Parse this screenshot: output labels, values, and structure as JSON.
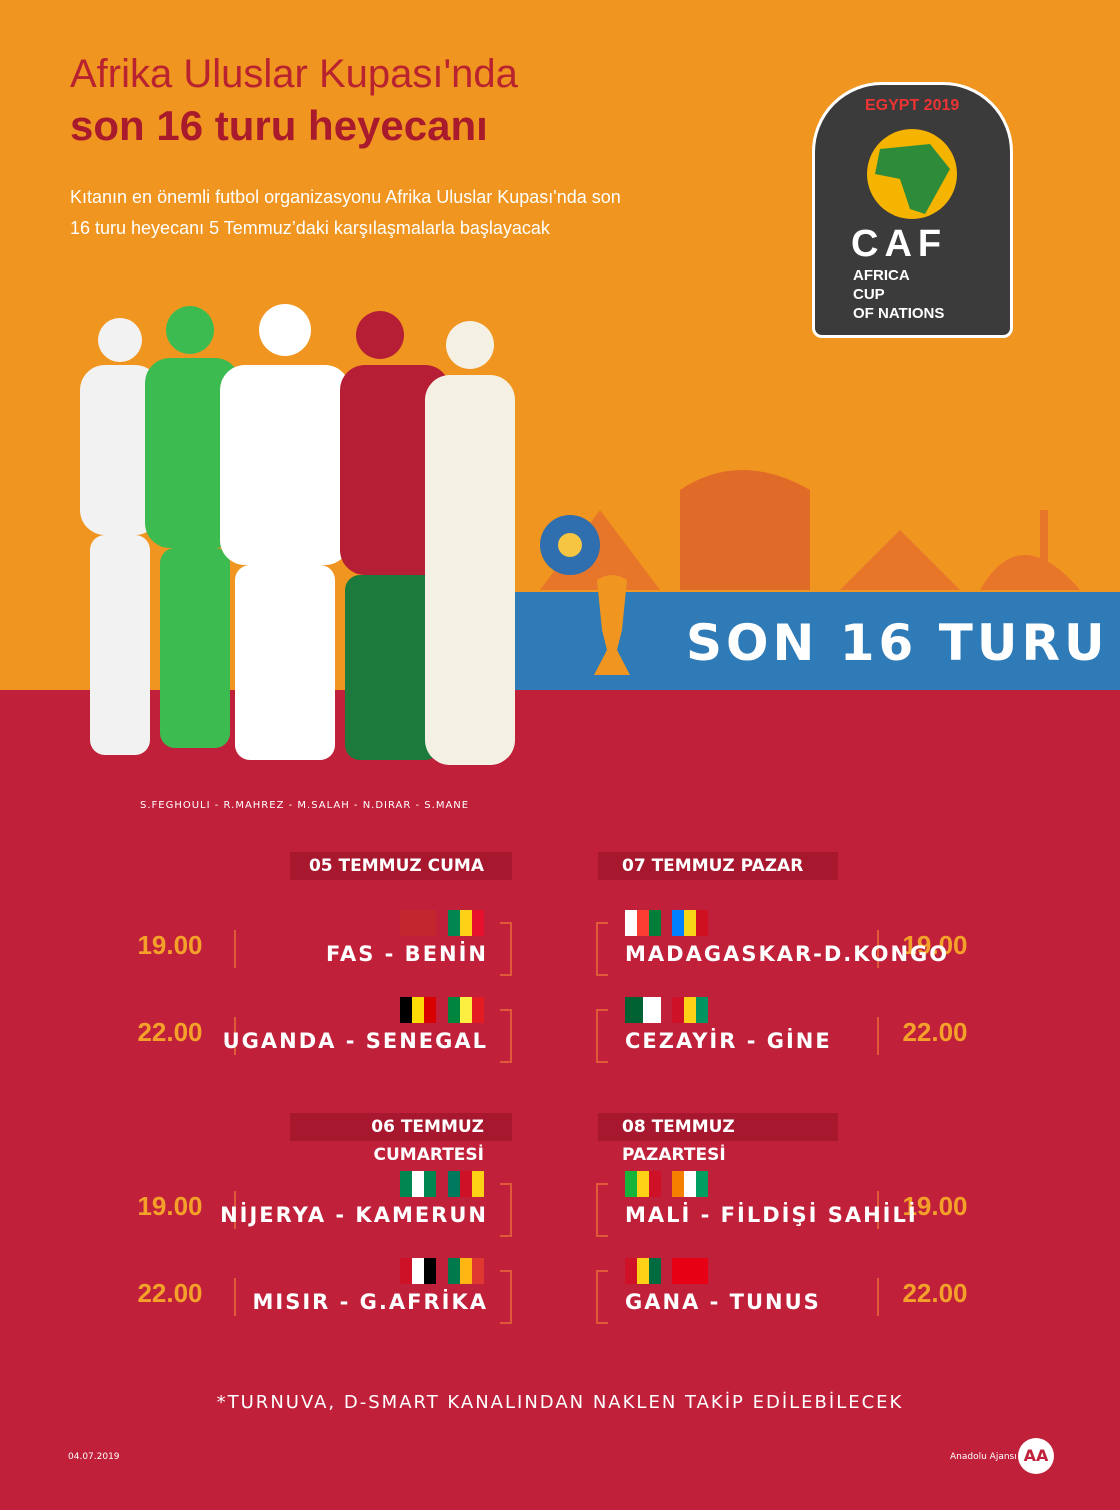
{
  "header": {
    "title_line1": "Afrika Uluslar Kupası'nda",
    "title_line2": "son 16 turu heyecanı",
    "intro": "Kıtanın en önemli futbol organizasyonu Afrika Uluslar Kupası'nda son 16 turu heyecanı 5 Temmuz’daki karşılaşmalarla başlayacak"
  },
  "logo": {
    "edition": "EGYPT 2019",
    "org": "CAF",
    "line1": "AFRICA",
    "line2": "CUP",
    "line3": "OF NATIONS"
  },
  "banner": "SON 16 TURU",
  "players_caption": "S.FEGHOULI - R.MAHREZ - M.SALAH - N.DIRAR - S.MANE",
  "days": [
    {
      "date": "05 TEMMUZ CUMA",
      "matches": [
        {
          "time": "19.00",
          "teams": "FAS - BENİN"
        },
        {
          "time": "22.00",
          "teams": "UGANDA - SENEGAL"
        }
      ]
    },
    {
      "date": "06 TEMMUZ CUMARTESİ",
      "matches": [
        {
          "time": "19.00",
          "teams": "NİJERYA - KAMERUN"
        },
        {
          "time": "22.00",
          "teams": "MISIR - G.AFRİKA"
        }
      ]
    },
    {
      "date": "07 TEMMUZ PAZAR",
      "matches": [
        {
          "time": "19.00",
          "teams": "MADAGASKAR-D.KONGO"
        },
        {
          "time": "22.00",
          "teams": "CEZAYİR - GİNE"
        }
      ]
    },
    {
      "date": "08 TEMMUZ PAZARTESİ",
      "matches": [
        {
          "time": "19.00",
          "teams": "MALİ - FİLDİŞİ SAHİLİ"
        },
        {
          "time": "22.00",
          "teams": "GANA - TUNUS"
        }
      ]
    }
  ],
  "footnote": "*TURNUVA, D-SMART KANALINDAN NAKLEN TAKİP EDİLEBİLECEK",
  "footer": {
    "date": "04.07.2019",
    "agency": "Anadolu Ajansı",
    "agency_logo": "AA"
  }
}
